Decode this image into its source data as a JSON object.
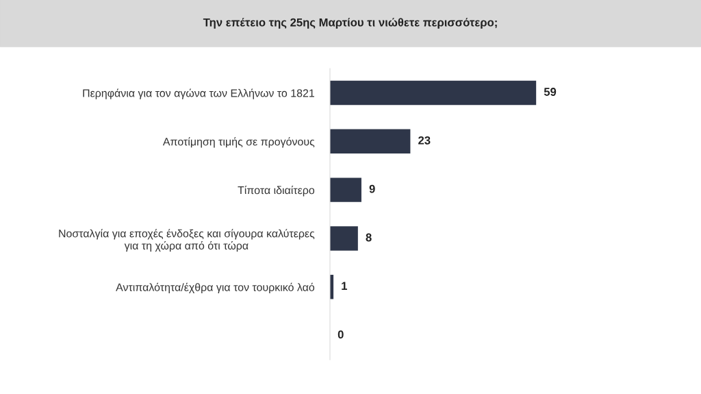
{
  "chart_data": {
    "type": "bar",
    "orientation": "horizontal",
    "title": "Την επέτειο της 25ης Μαρτίου τι νιώθετε περισσότερο;",
    "categories": [
      "Περηφάνια για τον αγώνα των Ελλήνων το 1821",
      "Αποτίμηση τιμής σε προγόνους",
      "Τίποτα ιδιαίτερο",
      "Νοσταλγία για εποχές ένδοξες και σίγουρα καλύτερες\nγια τη χώρα από ότι τώρα",
      "Αντιπαλότητα/έχθρα για τον τουρκικό λαό",
      null
    ],
    "values": [
      59,
      23,
      9,
      8,
      1,
      0
    ],
    "color": "#2e3649",
    "data_labels": true,
    "grid": false,
    "legend": false
  }
}
